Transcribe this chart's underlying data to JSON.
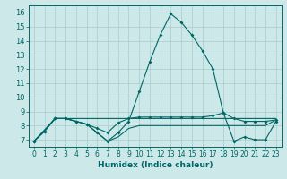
{
  "xlabel": "Humidex (Indice chaleur)",
  "bg_color": "#cce8e8",
  "grid_color": "#aacccc",
  "line_color": "#006666",
  "xlim": [
    -0.5,
    23.5
  ],
  "ylim": [
    6.5,
    16.5
  ],
  "xticks": [
    0,
    1,
    2,
    3,
    4,
    5,
    6,
    7,
    8,
    9,
    10,
    11,
    12,
    13,
    14,
    15,
    16,
    17,
    18,
    19,
    20,
    21,
    22,
    23
  ],
  "yticks": [
    7,
    8,
    9,
    10,
    11,
    12,
    13,
    14,
    15,
    16
  ],
  "line1_x": [
    0,
    1,
    2,
    3,
    4,
    5,
    6,
    7,
    8,
    9,
    10,
    11,
    12,
    13,
    14,
    15,
    16,
    17,
    18,
    19,
    20,
    21,
    22,
    23
  ],
  "line1_y": [
    6.9,
    7.6,
    8.5,
    8.5,
    8.3,
    8.1,
    7.5,
    6.9,
    7.5,
    8.3,
    10.4,
    12.5,
    14.4,
    15.9,
    15.3,
    14.4,
    13.3,
    12.0,
    8.9,
    6.9,
    7.2,
    7.0,
    7.0,
    8.3
  ],
  "line2_x": [
    0,
    1,
    2,
    3,
    4,
    5,
    6,
    7,
    8,
    9,
    10,
    11,
    12,
    13,
    14,
    15,
    16,
    17,
    18,
    19,
    20,
    21,
    22,
    23
  ],
  "line2_y": [
    6.9,
    7.6,
    8.5,
    8.5,
    8.3,
    8.1,
    7.8,
    7.5,
    8.2,
    8.5,
    8.6,
    8.6,
    8.6,
    8.6,
    8.6,
    8.6,
    8.6,
    8.7,
    8.9,
    8.5,
    8.3,
    8.3,
    8.3,
    8.4
  ],
  "line3_x": [
    0,
    1,
    2,
    3,
    4,
    5,
    6,
    7,
    8,
    9,
    10,
    11,
    12,
    13,
    14,
    15,
    16,
    17,
    18,
    19,
    20,
    21,
    22,
    23
  ],
  "line3_y": [
    6.9,
    7.6,
    8.5,
    8.5,
    8.5,
    8.5,
    8.5,
    8.5,
    8.5,
    8.5,
    8.5,
    8.5,
    8.5,
    8.5,
    8.5,
    8.5,
    8.5,
    8.5,
    8.5,
    8.5,
    8.5,
    8.5,
    8.5,
    8.5
  ],
  "line4_x": [
    0,
    2,
    3,
    4,
    5,
    6,
    7,
    8,
    9,
    10,
    11,
    12,
    13,
    14,
    15,
    16,
    17,
    18,
    19,
    20,
    21,
    22,
    23
  ],
  "line4_y": [
    6.9,
    8.5,
    8.5,
    8.3,
    8.1,
    7.5,
    6.9,
    7.2,
    7.8,
    8.0,
    8.0,
    8.0,
    8.0,
    8.0,
    8.0,
    8.0,
    8.0,
    8.0,
    8.0,
    8.0,
    8.0,
    8.0,
    8.4
  ]
}
